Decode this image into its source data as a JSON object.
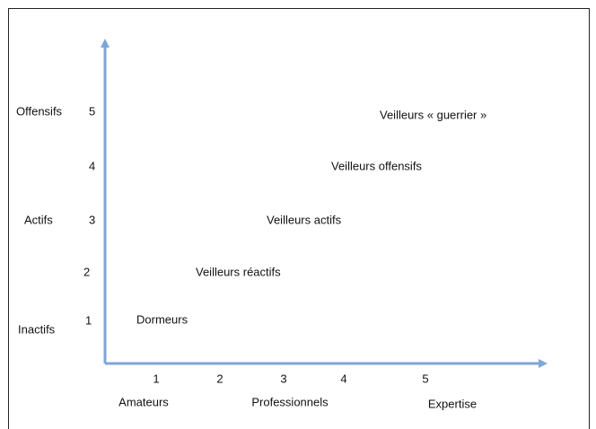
{
  "y_axis": {
    "ticks": [
      5,
      4,
      3,
      2,
      1
    ],
    "labels": [
      "Offensifs",
      "Actifs",
      "Inactifs"
    ]
  },
  "x_axis": {
    "ticks": [
      1,
      2,
      3,
      4,
      5
    ],
    "labels": [
      "Amateurs",
      "Professionnels",
      "Expertise"
    ]
  },
  "items": [
    "Dormeurs",
    "Veilleurs réactifs",
    "Veilleurs actifs",
    "Veilleurs offensifs",
    "Veilleurs « guerrier »"
  ]
}
